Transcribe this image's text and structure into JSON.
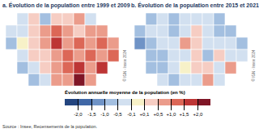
{
  "chart_data": [
    {
      "type": "heatmap",
      "title": "a. Évolution de la population entre 1999 et 2009",
      "credit": "© IGN - Insee 2024",
      "cells": [
        [
          null,
          -0.3,
          0.2,
          -0.6,
          0.4,
          0.3,
          0.6,
          -0.2,
          null,
          null
        ],
        [
          -0.4,
          -0.2,
          0.3,
          0.5,
          1.2,
          0.8,
          0.4,
          0.6,
          0.9,
          null
        ],
        [
          -0.7,
          -0.1,
          0.2,
          0.9,
          1.6,
          0.7,
          1.1,
          0.5,
          1.3,
          0.6
        ],
        [
          null,
          -0.5,
          0.3,
          0.4,
          0.6,
          1.0,
          0.8,
          1.4,
          0.9,
          1.1
        ],
        [
          null,
          -0.8,
          -0.3,
          0.1,
          0.7,
          1.2,
          1.6,
          0.6,
          1.8,
          null
        ],
        [
          null,
          null,
          -0.6,
          -0.2,
          0.5,
          0.9,
          2.1,
          0.8,
          null,
          null
        ]
      ]
    },
    {
      "type": "heatmap",
      "title": "b. Évolution de la population entre 2015 et 2021",
      "credit": "© IGN - Insee 2024",
      "cells": [
        [
          null,
          -0.6,
          -0.4,
          -0.9,
          -0.3,
          -0.2,
          -0.5,
          -0.7,
          null,
          null
        ],
        [
          -0.8,
          -0.5,
          -0.3,
          -0.6,
          -0.2,
          0.3,
          -0.4,
          -0.8,
          -0.6,
          null
        ],
        [
          -1.1,
          -0.7,
          -0.4,
          -0.5,
          0.6,
          0.2,
          -0.3,
          -0.5,
          -0.2,
          -0.7
        ],
        [
          null,
          -0.9,
          -0.6,
          -0.2,
          -0.4,
          0.1,
          -0.6,
          0.2,
          -0.3,
          -0.5
        ],
        [
          null,
          -0.7,
          -0.8,
          -0.5,
          -0.1,
          0.4,
          0.3,
          -0.2,
          0.7,
          null
        ],
        [
          null,
          null,
          -0.5,
          -0.9,
          -0.4,
          -0.2,
          0.5,
          -0.3,
          null,
          null
        ]
      ]
    }
  ],
  "color_bar": {
    "title": "Évolution annuelle moyenne de la population (en %)",
    "thresholds": [
      -2.0,
      -1.5,
      -1.0,
      -0.5,
      -0.1,
      0.1,
      0.5,
      1.0,
      1.5,
      2.0
    ],
    "colors": [
      "#23457f",
      "#3f67a6",
      "#6f93c6",
      "#a3bfe0",
      "#d2e0f0",
      "#f7f1c8",
      "#f6cdc3",
      "#eb9c8b",
      "#dc6757",
      "#bd3535",
      "#7f1526"
    ],
    "ticks": [
      {
        "value": -2.0,
        "label": "-2,0"
      },
      {
        "value": -1.5,
        "label": "-1,5"
      },
      {
        "value": -1.0,
        "label": "-1,0"
      },
      {
        "value": -0.5,
        "label": "-0,5"
      },
      {
        "value": -0.1,
        "label": "-0,1"
      },
      {
        "value": 0.1,
        "label": "+0,1"
      },
      {
        "value": 0.5,
        "label": "+0,5"
      },
      {
        "value": 1.0,
        "label": "+1,0"
      },
      {
        "value": 1.5,
        "label": "+1,5"
      },
      {
        "value": 2.0,
        "label": "+2,0"
      }
    ]
  },
  "source": "Source : Insee, Recensements de la population."
}
